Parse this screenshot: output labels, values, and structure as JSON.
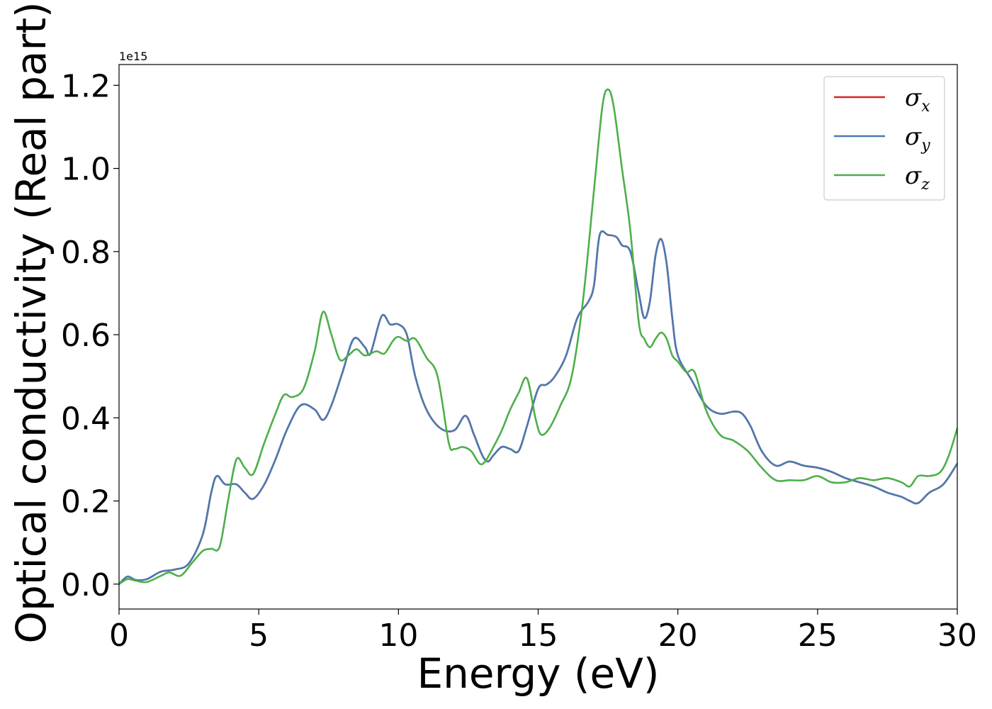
{
  "chart_data": {
    "type": "line",
    "title": "",
    "xlabel": "Energy (eV)",
    "ylabel": "Optical conductivity (Real part)",
    "y_offset_label": "1e15",
    "xlim": [
      0,
      30
    ],
    "ylim": [
      -0.06,
      1.25
    ],
    "x_ticks": [
      0,
      5,
      10,
      15,
      20,
      25,
      30
    ],
    "y_ticks": [
      0.0,
      0.2,
      0.4,
      0.6,
      0.8,
      1.0,
      1.2
    ],
    "x_tick_labels": [
      "0",
      "5",
      "10",
      "15",
      "20",
      "25",
      "30"
    ],
    "y_tick_labels": [
      "0.0",
      "0.2",
      "0.4",
      "0.6",
      "0.8",
      "1.0",
      "1.2"
    ],
    "grid": false,
    "legend_position": "top-right",
    "series": [
      {
        "name": "σx",
        "symbol": "σ",
        "subscript": "x",
        "color": "#d62728",
        "x": [
          0,
          0.3,
          0.6,
          1.0,
          1.5,
          2.0,
          2.5,
          3.0,
          3.3,
          3.5,
          3.8,
          4.2,
          4.5,
          4.8,
          5.2,
          5.6,
          6.0,
          6.5,
          7.0,
          7.3,
          7.6,
          8.0,
          8.4,
          8.8,
          9.0,
          9.4,
          9.7,
          10.0,
          10.3,
          10.6,
          11.0,
          11.5,
          12.0,
          12.4,
          12.7,
          13.0,
          13.2,
          13.4,
          13.7,
          14.0,
          14.3,
          14.6,
          15.0,
          15.3,
          15.6,
          16.0,
          16.4,
          16.8,
          17.0,
          17.2,
          17.5,
          17.8,
          18.0,
          18.3,
          18.6,
          18.8,
          19.0,
          19.2,
          19.4,
          19.6,
          19.8,
          20.0,
          20.5,
          21.0,
          21.5,
          22.0,
          22.3,
          22.6,
          23.0,
          23.5,
          24.0,
          24.5,
          25.0,
          25.5,
          26.0,
          26.5,
          27.0,
          27.5,
          28.0,
          28.3,
          28.6,
          29.0,
          29.5,
          30.0
        ],
        "y": [
          0.0,
          0.018,
          0.01,
          0.012,
          0.03,
          0.035,
          0.05,
          0.12,
          0.22,
          0.26,
          0.24,
          0.24,
          0.22,
          0.205,
          0.24,
          0.3,
          0.37,
          0.43,
          0.42,
          0.395,
          0.43,
          0.51,
          0.59,
          0.57,
          0.555,
          0.645,
          0.625,
          0.625,
          0.6,
          0.5,
          0.42,
          0.375,
          0.37,
          0.405,
          0.36,
          0.31,
          0.295,
          0.31,
          0.33,
          0.325,
          0.32,
          0.38,
          0.47,
          0.48,
          0.5,
          0.55,
          0.64,
          0.68,
          0.72,
          0.84,
          0.84,
          0.835,
          0.815,
          0.8,
          0.7,
          0.64,
          0.68,
          0.79,
          0.83,
          0.77,
          0.64,
          0.55,
          0.49,
          0.43,
          0.41,
          0.415,
          0.41,
          0.38,
          0.32,
          0.285,
          0.295,
          0.285,
          0.28,
          0.27,
          0.255,
          0.245,
          0.235,
          0.22,
          0.21,
          0.2,
          0.195,
          0.22,
          0.24,
          0.29
        ]
      },
      {
        "name": "σy",
        "symbol": "σ",
        "subscript": "y",
        "color": "#4a7ab0",
        "x": [
          0,
          0.3,
          0.6,
          1.0,
          1.5,
          2.0,
          2.5,
          3.0,
          3.3,
          3.5,
          3.8,
          4.2,
          4.5,
          4.8,
          5.2,
          5.6,
          6.0,
          6.5,
          7.0,
          7.3,
          7.6,
          8.0,
          8.4,
          8.8,
          9.0,
          9.4,
          9.7,
          10.0,
          10.3,
          10.6,
          11.0,
          11.5,
          12.0,
          12.4,
          12.7,
          13.0,
          13.2,
          13.4,
          13.7,
          14.0,
          14.3,
          14.6,
          15.0,
          15.3,
          15.6,
          16.0,
          16.4,
          16.8,
          17.0,
          17.2,
          17.5,
          17.8,
          18.0,
          18.3,
          18.6,
          18.8,
          19.0,
          19.2,
          19.4,
          19.6,
          19.8,
          20.0,
          20.5,
          21.0,
          21.5,
          22.0,
          22.3,
          22.6,
          23.0,
          23.5,
          24.0,
          24.5,
          25.0,
          25.5,
          26.0,
          26.5,
          27.0,
          27.5,
          28.0,
          28.3,
          28.6,
          29.0,
          29.5,
          30.0
        ],
        "y": [
          0.0,
          0.018,
          0.01,
          0.012,
          0.03,
          0.035,
          0.05,
          0.12,
          0.22,
          0.26,
          0.24,
          0.24,
          0.22,
          0.205,
          0.24,
          0.3,
          0.37,
          0.43,
          0.42,
          0.395,
          0.43,
          0.51,
          0.59,
          0.57,
          0.555,
          0.645,
          0.625,
          0.625,
          0.6,
          0.5,
          0.42,
          0.375,
          0.37,
          0.405,
          0.36,
          0.31,
          0.295,
          0.31,
          0.33,
          0.325,
          0.32,
          0.38,
          0.47,
          0.48,
          0.5,
          0.55,
          0.64,
          0.68,
          0.72,
          0.84,
          0.84,
          0.835,
          0.815,
          0.8,
          0.7,
          0.64,
          0.68,
          0.79,
          0.83,
          0.77,
          0.64,
          0.55,
          0.49,
          0.43,
          0.41,
          0.415,
          0.41,
          0.38,
          0.32,
          0.285,
          0.295,
          0.285,
          0.28,
          0.27,
          0.255,
          0.245,
          0.235,
          0.22,
          0.21,
          0.2,
          0.195,
          0.22,
          0.24,
          0.29
        ]
      },
      {
        "name": "σz",
        "symbol": "σ",
        "subscript": "z",
        "color": "#4daf4a",
        "x": [
          0,
          0.3,
          0.6,
          1.0,
          1.5,
          1.8,
          2.2,
          2.6,
          3.0,
          3.3,
          3.6,
          3.9,
          4.2,
          4.5,
          4.8,
          5.2,
          5.6,
          5.9,
          6.2,
          6.6,
          7.0,
          7.3,
          7.6,
          7.9,
          8.2,
          8.5,
          8.8,
          9.2,
          9.5,
          9.8,
          10.0,
          10.3,
          10.6,
          11.0,
          11.4,
          11.8,
          12.0,
          12.3,
          12.6,
          12.9,
          13.1,
          13.4,
          13.7,
          14.0,
          14.3,
          14.6,
          14.9,
          15.1,
          15.4,
          15.8,
          16.2,
          16.6,
          17.0,
          17.3,
          17.5,
          17.7,
          18.0,
          18.3,
          18.6,
          18.8,
          19.0,
          19.2,
          19.4,
          19.6,
          19.8,
          20.0,
          20.3,
          20.6,
          21.0,
          21.5,
          22.0,
          22.5,
          23.0,
          23.5,
          24.0,
          24.5,
          25.0,
          25.5,
          26.0,
          26.5,
          27.0,
          27.5,
          28.0,
          28.3,
          28.6,
          29.0,
          29.4,
          29.7,
          30.0
        ],
        "y": [
          0.0,
          0.012,
          0.008,
          0.005,
          0.02,
          0.028,
          0.02,
          0.05,
          0.08,
          0.085,
          0.09,
          0.2,
          0.3,
          0.28,
          0.265,
          0.34,
          0.41,
          0.455,
          0.45,
          0.47,
          0.56,
          0.655,
          0.6,
          0.54,
          0.55,
          0.565,
          0.55,
          0.56,
          0.555,
          0.585,
          0.595,
          0.585,
          0.59,
          0.545,
          0.5,
          0.34,
          0.325,
          0.33,
          0.32,
          0.29,
          0.295,
          0.33,
          0.37,
          0.42,
          0.46,
          0.495,
          0.4,
          0.36,
          0.375,
          0.43,
          0.5,
          0.68,
          0.95,
          1.15,
          1.19,
          1.15,
          1.0,
          0.85,
          0.63,
          0.59,
          0.57,
          0.59,
          0.605,
          0.59,
          0.55,
          0.535,
          0.51,
          0.51,
          0.42,
          0.36,
          0.345,
          0.32,
          0.28,
          0.25,
          0.25,
          0.25,
          0.26,
          0.245,
          0.245,
          0.255,
          0.25,
          0.255,
          0.245,
          0.235,
          0.26,
          0.26,
          0.27,
          0.31,
          0.375
        ]
      }
    ]
  }
}
